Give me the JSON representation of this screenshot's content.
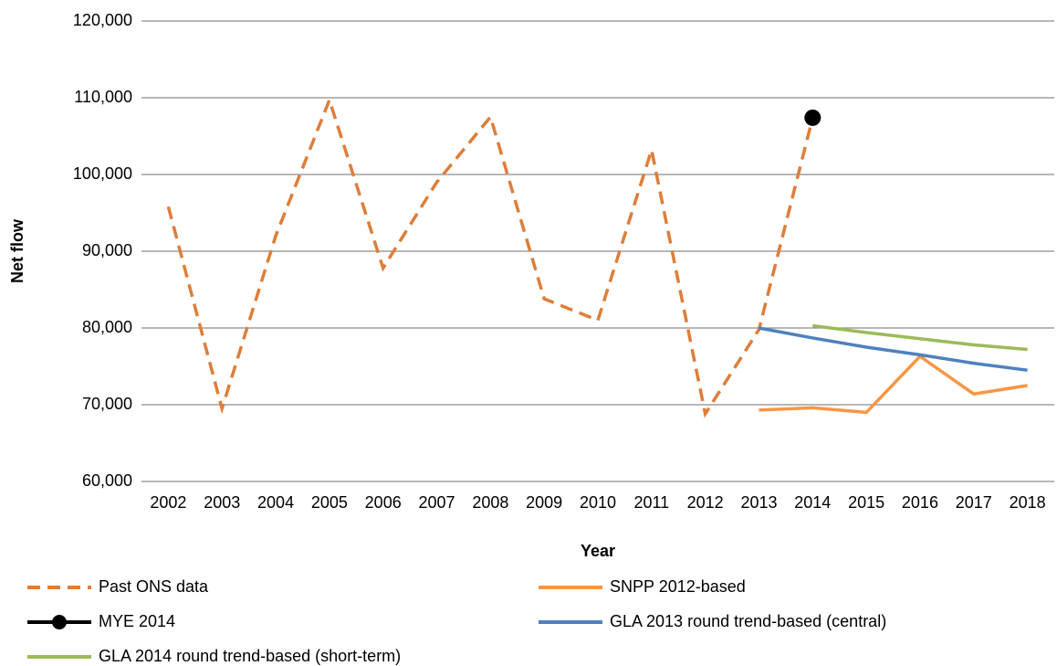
{
  "chart_data": {
    "type": "line",
    "x_label": "Year",
    "y_label": "Net flow",
    "categories": [
      "2002",
      "2003",
      "2004",
      "2005",
      "2006",
      "2007",
      "2008",
      "2009",
      "2010",
      "2011",
      "2012",
      "2013",
      "2014",
      "2015",
      "2016",
      "2017",
      "2018"
    ],
    "ylim": [
      60000,
      120000
    ],
    "yticks": [
      {
        "value": 60000,
        "label": "60,000"
      },
      {
        "value": 70000,
        "label": "70,000"
      },
      {
        "value": 80000,
        "label": "80,000"
      },
      {
        "value": 90000,
        "label": "90,000"
      },
      {
        "value": 100000,
        "label": "100,000"
      },
      {
        "value": 110000,
        "label": "110,000"
      },
      {
        "value": 120000,
        "label": "120,000"
      }
    ],
    "grid": true,
    "legend": "bottom",
    "series": [
      {
        "name": "Past ONS data",
        "color": "#dd7e3a",
        "dashed": true,
        "values": [
          95800,
          69500,
          92000,
          109700,
          87800,
          99000,
          107500,
          83800,
          81000,
          103200,
          68800,
          79800,
          107400,
          null,
          null,
          null,
          null
        ]
      },
      {
        "name": "SNPP 2012-based",
        "color": "#f79646",
        "values": [
          null,
          null,
          null,
          null,
          null,
          null,
          null,
          null,
          null,
          null,
          null,
          69300,
          69600,
          69000,
          76300,
          71400,
          72500
        ]
      },
      {
        "name": "MYE 2014",
        "color": "#000000",
        "marker": true,
        "values": [
          null,
          null,
          null,
          null,
          null,
          null,
          null,
          null,
          null,
          null,
          null,
          null,
          107400,
          null,
          null,
          null,
          null
        ]
      },
      {
        "name": "GLA 2013 round trend-based (central)",
        "color": "#4f81bd",
        "values": [
          null,
          null,
          null,
          null,
          null,
          null,
          null,
          null,
          null,
          null,
          null,
          80000,
          78700,
          77500,
          76500,
          75400,
          74500
        ]
      },
      {
        "name": "GLA 2014 round trend-based (short-term)",
        "color": "#9bbb59",
        "values": [
          null,
          null,
          null,
          null,
          null,
          null,
          null,
          null,
          null,
          null,
          null,
          null,
          80300,
          79400,
          78600,
          77800,
          77200
        ]
      }
    ]
  }
}
